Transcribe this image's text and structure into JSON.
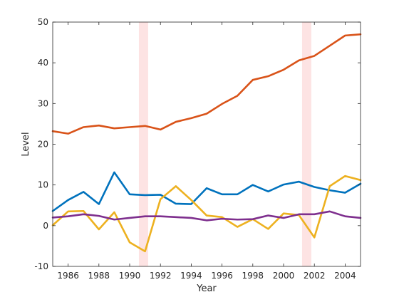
{
  "chart_data": {
    "type": "line",
    "title": "",
    "xlabel": "Year",
    "ylabel": "Level",
    "xlim": [
      1985,
      2005
    ],
    "ylim": [
      -10,
      50
    ],
    "xticks": [
      1986,
      1988,
      1990,
      1992,
      1994,
      1996,
      1998,
      2000,
      2002,
      2004
    ],
    "yticks": [
      -10,
      0,
      10,
      20,
      30,
      40,
      50
    ],
    "grid": false,
    "legend": "none",
    "shaded_regions": [
      {
        "x0": 1990.6,
        "x1": 1991.2,
        "color": "#fde3e3"
      },
      {
        "x0": 2001.2,
        "x1": 2001.8,
        "color": "#fde3e3"
      }
    ],
    "x": [
      1985,
      1986,
      1987,
      1988,
      1989,
      1990,
      1991,
      1992,
      1993,
      1994,
      1995,
      1996,
      1997,
      1998,
      1999,
      2000,
      2001,
      2002,
      2003,
      2004,
      2005
    ],
    "series": [
      {
        "color": "#0072bd",
        "values": [
          3.6,
          6.3,
          8.3,
          5.3,
          13.1,
          7.7,
          7.5,
          7.6,
          5.4,
          5.3,
          9.2,
          7.7,
          7.7,
          10.0,
          8.4,
          10.1,
          10.8,
          9.5,
          8.7,
          8.1,
          10.3
        ]
      },
      {
        "color": "#d95319",
        "values": [
          23.2,
          22.6,
          24.2,
          24.6,
          23.9,
          24.2,
          24.5,
          23.6,
          25.5,
          26.4,
          27.5,
          29.9,
          31.9,
          35.8,
          36.7,
          38.3,
          40.6,
          41.7,
          44.2,
          46.7,
          47.0
        ]
      },
      {
        "color": "#edb120",
        "values": [
          0.1,
          3.5,
          3.6,
          -0.9,
          3.3,
          -4.1,
          -6.3,
          6.5,
          9.7,
          6.3,
          2.5,
          2.1,
          -0.3,
          1.6,
          -0.8,
          3.0,
          2.6,
          -2.9,
          9.7,
          12.2,
          11.2
        ]
      },
      {
        "color": "#7e2f8e",
        "values": [
          2.0,
          2.3,
          2.8,
          2.4,
          1.5,
          1.9,
          2.3,
          2.3,
          2.1,
          1.9,
          1.3,
          1.7,
          1.5,
          1.6,
          2.5,
          1.9,
          2.8,
          2.8,
          3.5,
          2.3,
          1.9
        ]
      }
    ]
  }
}
